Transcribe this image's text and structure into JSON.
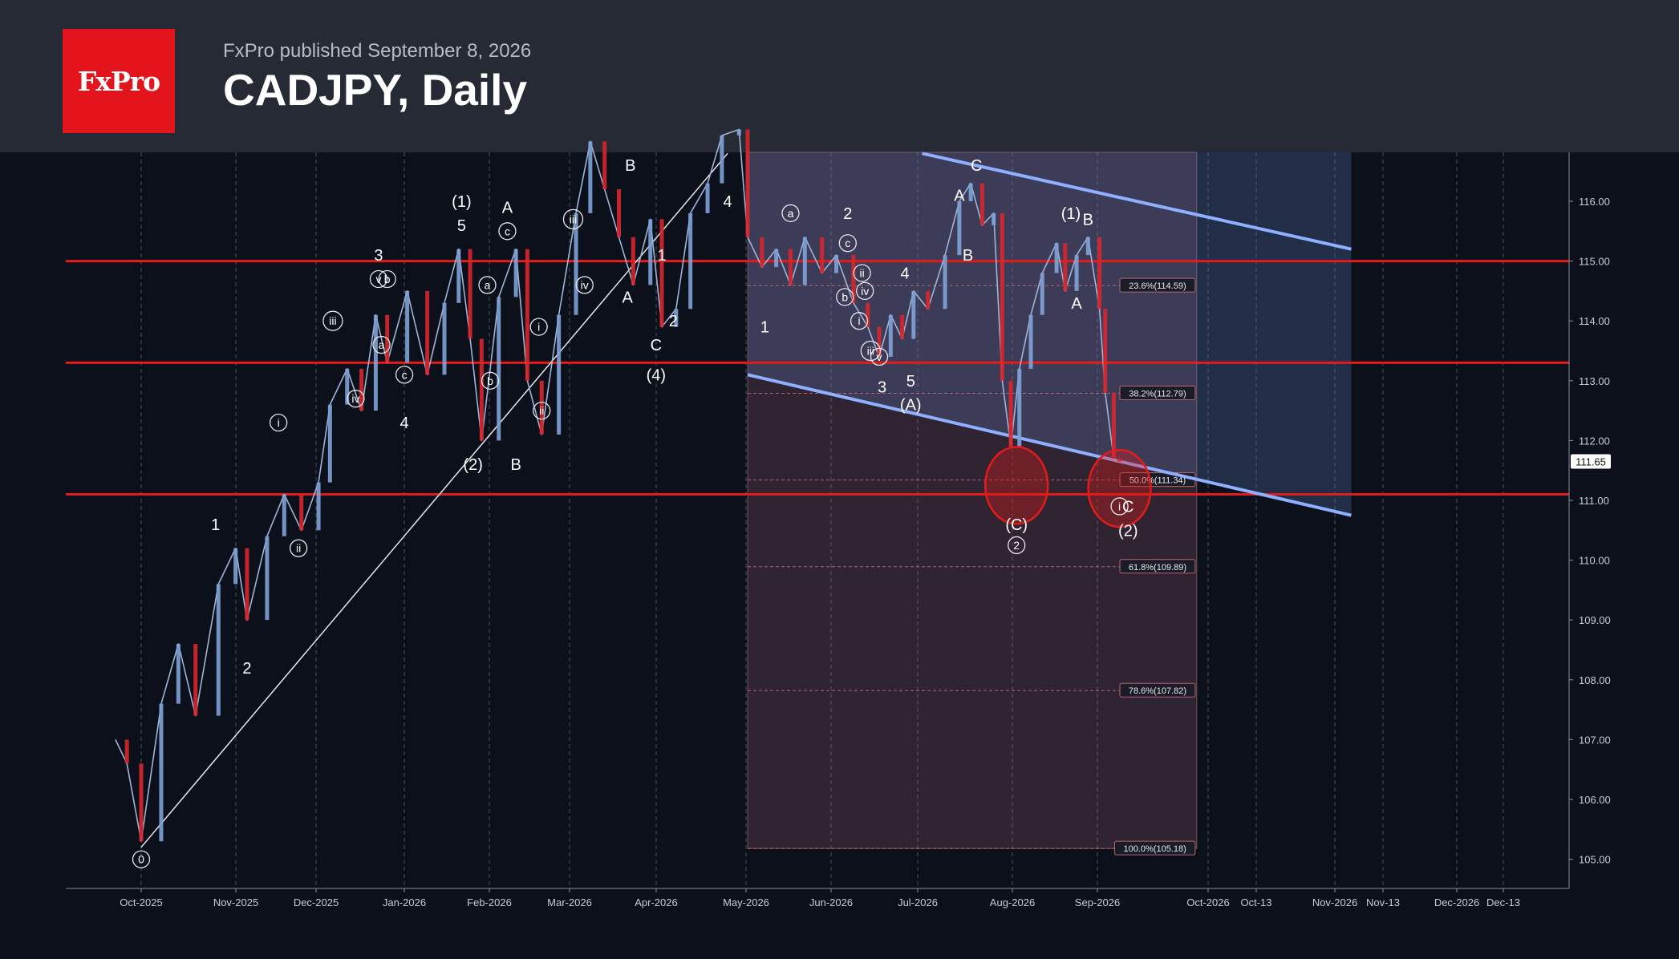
{
  "header": {
    "brand": "FxPro",
    "published": "FxPro published September 8, 2026",
    "title": "CADJPY, Daily"
  },
  "colors": {
    "background": "#0b101b",
    "header_bg": "#262a35",
    "brand_red": "#e4141c",
    "level_red": "#e31b1b",
    "channel_blue": "#8fb0ff",
    "bullish": "#7fa2d8",
    "bearish": "#d7262e"
  },
  "chart_data": {
    "type": "line",
    "title": "CADJPY, Daily",
    "ylim": [
      104.6,
      116.8
    ],
    "y_ticks": [
      "105.00",
      "106.00",
      "107.00",
      "108.00",
      "109.00",
      "110.00",
      "111.00",
      "112.00",
      "113.00",
      "114.00",
      "115.00",
      "116.00"
    ],
    "x_ticks": [
      "Oct-2025",
      "Nov-2025",
      "Dec-2025",
      "Jan-2026",
      "Feb-2026",
      "Mar-2026",
      "Apr-2026",
      "May-2026",
      "Jun-2026",
      "Jul-2026",
      "Aug-2026",
      "Sep-2026",
      "Oct-2026",
      "Oct-13",
      "Nov-2026",
      "Nov-13",
      "Dec-2026",
      "Dec-13"
    ],
    "last_price": "111.65",
    "grid": true,
    "series": [
      {
        "x": [
          "2025-09-22",
          "2025-09-26",
          "2025-10-01",
          "2025-10-08",
          "2025-10-14",
          "2025-10-20",
          "2025-10-28",
          "2025-11-03",
          "2025-11-07",
          "2025-11-14",
          "2025-11-20",
          "2025-11-26",
          "2025-12-02",
          "2025-12-06",
          "2025-12-12",
          "2025-12-17",
          "2025-12-22",
          "2025-12-26",
          "2026-01-02",
          "2026-01-09",
          "2026-01-15",
          "2026-01-20",
          "2026-01-24",
          "2026-01-28",
          "2026-02-03",
          "2026-02-09",
          "2026-02-13",
          "2026-02-18",
          "2026-02-24",
          "2026-03-02",
          "2026-03-07",
          "2026-03-12",
          "2026-03-17",
          "2026-03-22",
          "2026-03-28",
          "2026-04-01",
          "2026-04-06",
          "2026-04-11",
          "2026-04-17",
          "2026-04-22",
          "2026-04-28",
          "2026-05-01",
          "2026-05-06",
          "2026-05-11",
          "2026-05-16",
          "2026-05-21",
          "2026-05-27",
          "2026-06-01",
          "2026-06-07",
          "2026-06-12",
          "2026-06-16",
          "2026-06-20",
          "2026-06-24",
          "2026-06-28",
          "2026-07-03",
          "2026-07-09",
          "2026-07-14",
          "2026-07-18",
          "2026-07-22",
          "2026-07-26",
          "2026-07-29",
          "2026-08-01",
          "2026-08-04",
          "2026-08-08",
          "2026-08-12",
          "2026-08-17",
          "2026-08-20",
          "2026-08-24",
          "2026-08-28",
          "2026-09-01",
          "2026-09-03",
          "2026-09-06",
          "2026-09-08"
        ],
        "y": [
          107.0,
          106.6,
          105.3,
          107.6,
          108.6,
          107.4,
          109.6,
          110.2,
          109.0,
          110.4,
          111.1,
          110.5,
          111.3,
          112.6,
          113.2,
          112.5,
          114.1,
          113.3,
          114.5,
          113.1,
          114.3,
          115.2,
          113.7,
          112.0,
          114.4,
          115.2,
          113.0,
          112.1,
          114.1,
          115.8,
          117.0,
          116.2,
          115.4,
          114.6,
          115.7,
          113.9,
          114.2,
          115.8,
          116.3,
          117.1,
          117.2,
          115.4,
          114.9,
          115.2,
          114.6,
          115.4,
          114.8,
          115.1,
          114.3,
          113.9,
          113.4,
          114.1,
          113.7,
          114.5,
          114.2,
          115.1,
          116.0,
          116.3,
          115.6,
          115.8,
          113.0,
          111.9,
          113.2,
          114.1,
          114.8,
          115.3,
          114.5,
          115.1,
          115.4,
          114.2,
          112.8,
          111.7,
          111.65
        ]
      }
    ],
    "horizontal_levels": [
      115.0,
      113.3,
      111.1
    ],
    "fibonacci": [
      {
        "label": "23.6%(114.59)",
        "value": 114.59
      },
      {
        "label": "38.2%(112.79)",
        "value": 112.79
      },
      {
        "label": "50.0%(111.34)",
        "value": 111.34
      },
      {
        "label": "61.8%(109.89)",
        "value": 109.89
      },
      {
        "label": "78.6%(107.82)",
        "value": 107.82
      },
      {
        "label": "100.0%(105.18)",
        "value": 105.18
      }
    ],
    "fib_zone": {
      "x_start": "2026-05-01",
      "x_end": "2026-10-05",
      "y_top": 116.8,
      "y_bottom": 105.18
    },
    "channel": {
      "upper": [
        [
          "2026-07-01",
          116.8
        ],
        [
          "2026-11-28",
          115.2
        ]
      ],
      "lower": [
        [
          "2026-05-01",
          113.1
        ],
        [
          "2026-11-28",
          110.75
        ]
      ],
      "shade_end": "2026-11-28"
    },
    "trendline": [
      [
        "2025-10-01",
        105.2
      ],
      [
        "2026-04-24",
        116.8
      ]
    ],
    "circles": [
      {
        "x": "2026-08-03",
        "y": 111.25
      },
      {
        "x": "2026-09-08",
        "y": 111.2
      }
    ],
    "wave_labels": [
      {
        "x": "2025-10-01",
        "y": 105.0,
        "text": "0",
        "circled": true
      },
      {
        "x": "2025-10-27",
        "y": 110.6,
        "text": "1"
      },
      {
        "x": "2025-11-07",
        "y": 108.2,
        "text": "2"
      },
      {
        "x": "2025-11-18",
        "y": 112.3,
        "text": "i",
        "circled": true
      },
      {
        "x": "2025-11-25",
        "y": 110.2,
        "text": "ii",
        "circled": true
      },
      {
        "x": "2025-12-07",
        "y": 114.0,
        "text": "iii",
        "circled": true
      },
      {
        "x": "2025-12-15",
        "y": 112.7,
        "text": "iv",
        "circled": true
      },
      {
        "x": "2025-12-23",
        "y": 115.1,
        "text": "3"
      },
      {
        "x": "2025-12-23",
        "y": 114.7,
        "text": "v",
        "circled": true
      },
      {
        "x": "2025-12-26",
        "y": 114.7,
        "text": "b",
        "circled": true
      },
      {
        "x": "2025-12-24",
        "y": 113.6,
        "text": "a",
        "circled": true
      },
      {
        "x": "2026-01-01",
        "y": 113.1,
        "text": "c",
        "circled": true
      },
      {
        "x": "2026-01-01",
        "y": 112.3,
        "text": "4"
      },
      {
        "x": "2026-01-21",
        "y": 116.0,
        "text": "(1)"
      },
      {
        "x": "2026-01-21",
        "y": 115.6,
        "text": "5"
      },
      {
        "x": "2026-01-25",
        "y": 111.6,
        "text": "(2)"
      },
      {
        "x": "2026-01-30",
        "y": 114.6,
        "text": "a",
        "circled": true
      },
      {
        "x": "2026-01-31",
        "y": 113.0,
        "text": "b",
        "circled": true
      },
      {
        "x": "2026-02-06",
        "y": 115.9,
        "text": "A"
      },
      {
        "x": "2026-02-06",
        "y": 115.5,
        "text": "c",
        "circled": true
      },
      {
        "x": "2026-02-09",
        "y": 111.6,
        "text": "B"
      },
      {
        "x": "2026-02-17",
        "y": 113.9,
        "text": "i",
        "circled": true
      },
      {
        "x": "2026-02-18",
        "y": 112.5,
        "text": "ii",
        "circled": true
      },
      {
        "x": "2026-03-01",
        "y": 115.7,
        "text": "iii",
        "circled": true
      },
      {
        "x": "2026-03-05",
        "y": 114.6,
        "text": "iv",
        "circled": true
      },
      {
        "x": "2026-03-21",
        "y": 116.6,
        "text": "B"
      },
      {
        "x": "2026-03-20",
        "y": 114.4,
        "text": "A"
      },
      {
        "x": "2026-04-01",
        "y": 115.1,
        "text": "1"
      },
      {
        "x": "2026-03-30",
        "y": 113.6,
        "text": "C"
      },
      {
        "x": "2026-03-30",
        "y": 113.1,
        "text": "(4)"
      },
      {
        "x": "2026-04-05",
        "y": 114.0,
        "text": "2"
      },
      {
        "x": "2026-04-24",
        "y": 116.0,
        "text": "4"
      },
      {
        "x": "2026-05-07",
        "y": 113.9,
        "text": "1"
      },
      {
        "x": "2026-05-16",
        "y": 115.8,
        "text": "a",
        "circled": true
      },
      {
        "x": "2026-06-05",
        "y": 115.8,
        "text": "2"
      },
      {
        "x": "2026-06-05",
        "y": 115.3,
        "text": "c",
        "circled": true
      },
      {
        "x": "2026-06-04",
        "y": 114.4,
        "text": "b",
        "circled": true
      },
      {
        "x": "2026-06-10",
        "y": 114.8,
        "text": "ii",
        "circled": true
      },
      {
        "x": "2026-06-11",
        "y": 114.5,
        "text": "iv",
        "circled": true
      },
      {
        "x": "2026-06-09",
        "y": 114.0,
        "text": "i",
        "circled": true
      },
      {
        "x": "2026-06-13",
        "y": 113.5,
        "text": "iii",
        "circled": true
      },
      {
        "x": "2026-06-16",
        "y": 113.4,
        "text": "v",
        "circled": true
      },
      {
        "x": "2026-06-17",
        "y": 112.9,
        "text": "3"
      },
      {
        "x": "2026-06-25",
        "y": 114.8,
        "text": "4"
      },
      {
        "x": "2026-06-27",
        "y": 113.0,
        "text": "5"
      },
      {
        "x": "2026-06-27",
        "y": 112.6,
        "text": "(A)"
      },
      {
        "x": "2026-07-14",
        "y": 116.1,
        "text": "A"
      },
      {
        "x": "2026-07-17",
        "y": 115.1,
        "text": "B"
      },
      {
        "x": "2026-07-20",
        "y": 116.6,
        "text": "C"
      },
      {
        "x": "2026-08-03",
        "y": 110.6,
        "text": "(C)"
      },
      {
        "x": "2026-08-03",
        "y": 110.25,
        "text": "2",
        "circled": true
      },
      {
        "x": "2026-08-22",
        "y": 115.8,
        "text": "(1)"
      },
      {
        "x": "2026-08-28",
        "y": 115.7,
        "text": "B"
      },
      {
        "x": "2026-08-24",
        "y": 114.3,
        "text": "A"
      },
      {
        "x": "2026-09-08",
        "y": 110.9,
        "text": "i",
        "circled": true
      },
      {
        "x": "2026-09-11",
        "y": 110.9,
        "text": "C"
      },
      {
        "x": "2026-09-11",
        "y": 110.5,
        "text": "(2)"
      }
    ]
  }
}
